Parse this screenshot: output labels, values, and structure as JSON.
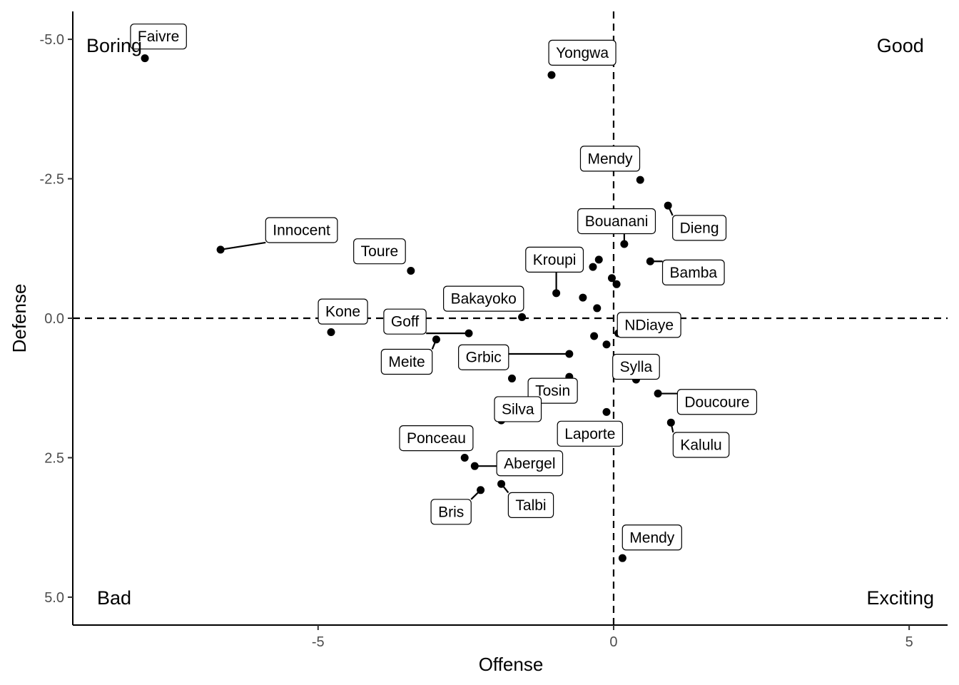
{
  "chart_data": {
    "type": "scatter",
    "xlabel": "Offense",
    "ylabel": "Defense",
    "xlim": [
      -9.15,
      5.65
    ],
    "ylim": [
      -5.5,
      5.5
    ],
    "y_reversed": true,
    "x_ticks": [
      {
        "value": -5,
        "label": "-5"
      },
      {
        "value": 0,
        "label": "0"
      },
      {
        "value": 5,
        "label": "5"
      }
    ],
    "y_ticks": [
      {
        "value": -5,
        "label": "-5.0"
      },
      {
        "value": -2.5,
        "label": "-2.5"
      },
      {
        "value": 0,
        "label": "0.0"
      },
      {
        "value": 2.5,
        "label": "2.5"
      },
      {
        "value": 5,
        "label": "5.0"
      }
    ],
    "reference_lines": {
      "x": 0,
      "y": 0
    },
    "quadrant_labels": [
      {
        "text": "Boring",
        "x": -8.45,
        "y": -4.9
      },
      {
        "text": "Good",
        "x": 4.85,
        "y": -4.9
      },
      {
        "text": "Bad",
        "x": -8.45,
        "y": 5.0
      },
      {
        "text": "Exciting",
        "x": 4.85,
        "y": 5.0
      }
    ],
    "points": [
      {
        "x": -7.93,
        "y": -4.66,
        "label": "Faivre",
        "lx": -7.7,
        "ly": -5.05
      },
      {
        "x": -1.05,
        "y": -4.36,
        "label": "Yongwa",
        "lx": -0.53,
        "ly": -4.76
      },
      {
        "x": 0.45,
        "y": -2.48,
        "label": "Mendy",
        "lx": -0.06,
        "ly": -2.86
      },
      {
        "x": 0.92,
        "y": -2.02,
        "label": "Dieng",
        "lx": 1.45,
        "ly": -1.62
      },
      {
        "x": 0.18,
        "y": -1.33,
        "label": "Bouanani",
        "lx": 0.05,
        "ly": -1.74
      },
      {
        "x": -0.25,
        "y": -1.05,
        "label": "",
        "lx": null,
        "ly": null
      },
      {
        "x": -0.35,
        "y": -0.92,
        "label": "",
        "lx": null,
        "ly": null
      },
      {
        "x": 0.62,
        "y": -1.02,
        "label": "Bamba",
        "lx": 1.35,
        "ly": -0.82
      },
      {
        "x": -0.03,
        "y": -0.72,
        "label": "",
        "lx": null,
        "ly": null
      },
      {
        "x": 0.05,
        "y": -0.61,
        "label": "",
        "lx": null,
        "ly": null
      },
      {
        "x": -0.97,
        "y": -0.45,
        "label": "Kroupi",
        "lx": -1.0,
        "ly": -1.05
      },
      {
        "x": -0.52,
        "y": -0.37,
        "label": "",
        "lx": null,
        "ly": null
      },
      {
        "x": -0.28,
        "y": -0.18,
        "label": "",
        "lx": null,
        "ly": null
      },
      {
        "x": -1.55,
        "y": -0.02,
        "label": "Bakayoko",
        "lx": -2.2,
        "ly": -0.35
      },
      {
        "x": 0.08,
        "y": 0.27,
        "label": "NDiaye",
        "lx": 0.6,
        "ly": 0.12
      },
      {
        "x": -6.65,
        "y": -1.23,
        "label": "Innocent",
        "lx": -5.28,
        "ly": -1.58
      },
      {
        "x": -3.43,
        "y": -0.85,
        "label": "Toure",
        "lx": -3.96,
        "ly": -1.2
      },
      {
        "x": -4.78,
        "y": 0.25,
        "label": "Kone",
        "lx": -4.58,
        "ly": -0.12
      },
      {
        "x": -2.45,
        "y": 0.27,
        "label": "Goff",
        "lx": -3.53,
        "ly": 0.06
      },
      {
        "x": -3.0,
        "y": 0.38,
        "label": "Meite",
        "lx": -3.5,
        "ly": 0.78
      },
      {
        "x": -0.33,
        "y": 0.32,
        "label": "",
        "lx": null,
        "ly": null
      },
      {
        "x": -0.12,
        "y": 0.47,
        "label": "",
        "lx": null,
        "ly": null
      },
      {
        "x": -0.75,
        "y": 0.64,
        "label": "Grbic",
        "lx": -2.2,
        "ly": 0.7
      },
      {
        "x": -1.72,
        "y": 1.08,
        "label": "",
        "lx": null,
        "ly": null
      },
      {
        "x": -0.75,
        "y": 1.05,
        "label": "Tosin",
        "lx": -1.03,
        "ly": 1.3
      },
      {
        "x": 0.38,
        "y": 1.1,
        "label": "Sylla",
        "lx": 0.38,
        "ly": 0.87
      },
      {
        "x": 0.75,
        "y": 1.35,
        "label": "Doucoure",
        "lx": 1.75,
        "ly": 1.5
      },
      {
        "x": -1.9,
        "y": 1.83,
        "label": "Silva",
        "lx": -1.62,
        "ly": 1.63
      },
      {
        "x": -0.12,
        "y": 1.68,
        "label": "Laporte",
        "lx": -0.4,
        "ly": 2.07
      },
      {
        "x": 0.97,
        "y": 1.87,
        "label": "Kalulu",
        "lx": 1.48,
        "ly": 2.27
      },
      {
        "x": -2.52,
        "y": 2.5,
        "label": "Ponceau",
        "lx": -3.0,
        "ly": 2.15
      },
      {
        "x": -2.35,
        "y": 2.65,
        "label": "Abergel",
        "lx": -1.42,
        "ly": 2.6
      },
      {
        "x": -1.9,
        "y": 2.97,
        "label": "Talbi",
        "lx": -1.4,
        "ly": 3.35
      },
      {
        "x": -2.25,
        "y": 3.08,
        "label": "Bris",
        "lx": -2.75,
        "ly": 3.47
      },
      {
        "x": 0.15,
        "y": 4.3,
        "label": "Mendy",
        "lx": 0.65,
        "ly": 3.93
      }
    ]
  }
}
